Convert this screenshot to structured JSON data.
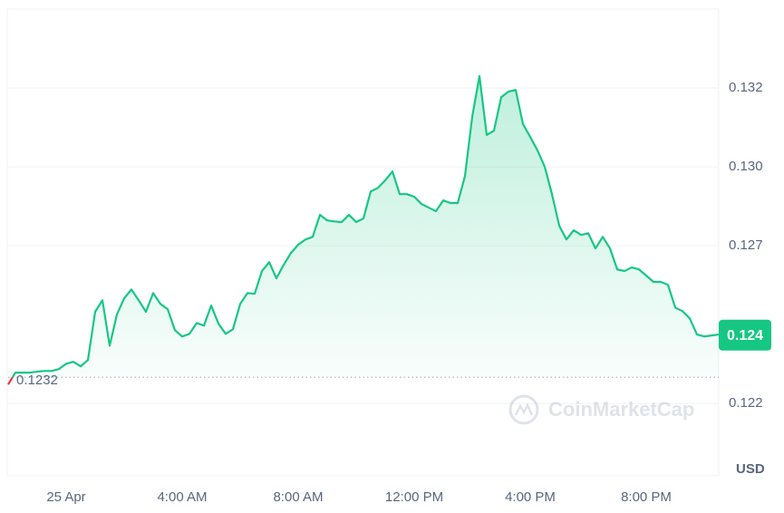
{
  "chart_data": {
    "type": "line",
    "x": [
      -2,
      -1.75,
      -1.5,
      -1.25,
      -1,
      -0.75,
      -0.5,
      -0.25,
      0,
      0.25,
      0.5,
      0.75,
      1,
      1.25,
      1.5,
      1.75,
      2,
      2.25,
      2.5,
      2.75,
      3,
      3.25,
      3.5,
      3.75,
      4,
      4.25,
      4.5,
      4.75,
      5,
      5.25,
      5.5,
      5.75,
      6,
      6.25,
      6.5,
      6.75,
      7,
      7.25,
      7.5,
      7.75,
      8,
      8.25,
      8.5,
      8.75,
      9,
      9.25,
      9.5,
      9.75,
      10,
      10.25,
      10.5,
      10.75,
      11,
      11.25,
      11.5,
      11.75,
      12,
      12.25,
      12.5,
      12.75,
      13,
      13.25,
      13.5,
      13.75,
      14,
      14.25,
      14.5,
      14.75,
      15,
      15.25,
      15.5,
      15.75,
      16,
      16.25,
      16.5,
      16.75,
      17,
      17.25,
      17.5,
      17.75,
      18,
      18.25,
      18.5,
      18.75,
      19,
      19.25,
      19.5,
      19.75,
      20,
      20.25,
      20.5,
      20.75,
      21,
      21.25,
      21.5,
      21.75,
      22,
      22.25,
      22.5
    ],
    "values": [
      0.12298,
      0.12334,
      0.12334,
      0.12334,
      0.12337,
      0.12339,
      0.12339,
      0.12345,
      0.12361,
      0.12367,
      0.12353,
      0.12372,
      0.12519,
      0.12554,
      0.12416,
      0.12511,
      0.1256,
      0.12587,
      0.12554,
      0.12519,
      0.12576,
      0.12543,
      0.12527,
      0.12463,
      0.12444,
      0.12452,
      0.12485,
      0.12477,
      0.12538,
      0.12483,
      0.12452,
      0.12466,
      0.12543,
      0.12576,
      0.12574,
      0.12643,
      0.1267,
      0.12621,
      0.12662,
      0.12698,
      0.12723,
      0.12739,
      0.12747,
      0.12814,
      0.12797,
      0.12794,
      0.12792,
      0.12814,
      0.12792,
      0.12803,
      0.12885,
      0.12896,
      0.12919,
      0.12946,
      0.12877,
      0.12877,
      0.12869,
      0.12847,
      0.12836,
      0.12825,
      0.12858,
      0.1285,
      0.1285,
      0.12932,
      0.13112,
      0.13236,
      0.13057,
      0.1307,
      0.13172,
      0.13189,
      0.13194,
      0.1309,
      0.13051,
      0.1301,
      0.1296,
      0.12877,
      0.12781,
      0.12739,
      0.12767,
      0.12753,
      0.12758,
      0.12712,
      0.12747,
      0.12712,
      0.12648,
      0.12643,
      0.12654,
      0.12648,
      0.12629,
      0.1261,
      0.1261,
      0.12601,
      0.12532,
      0.12521,
      0.12499,
      0.1245,
      0.12444,
      0.12447,
      0.1245
    ],
    "color": "#16c784",
    "down_color": "#ea3943",
    "open_price": 0.1232,
    "current_price": {
      "value": 0.12448,
      "label": "0.124"
    },
    "currency": "USD",
    "watermark": "CoinMarketCap",
    "xlim": [
      -2,
      22.5
    ],
    "xticks": [
      {
        "value": 0,
        "label": "25 Apr"
      },
      {
        "value": 4,
        "label": "4:00 AM"
      },
      {
        "value": 8,
        "label": "8:00 AM"
      },
      {
        "value": 12,
        "label": "12:00 PM"
      },
      {
        "value": 16,
        "label": "4:00 PM"
      },
      {
        "value": 20,
        "label": "8:00 PM"
      }
    ],
    "ylim": [
      0.1202,
      0.1344
    ],
    "yticks": [
      0.132,
      {
        "value": 0.1296,
        "label": "0.130"
      },
      {
        "value": 0.1272,
        "label": "0.127"
      },
      {
        "value": 0.1224,
        "label": "0.122"
      }
    ],
    "grid": true
  }
}
